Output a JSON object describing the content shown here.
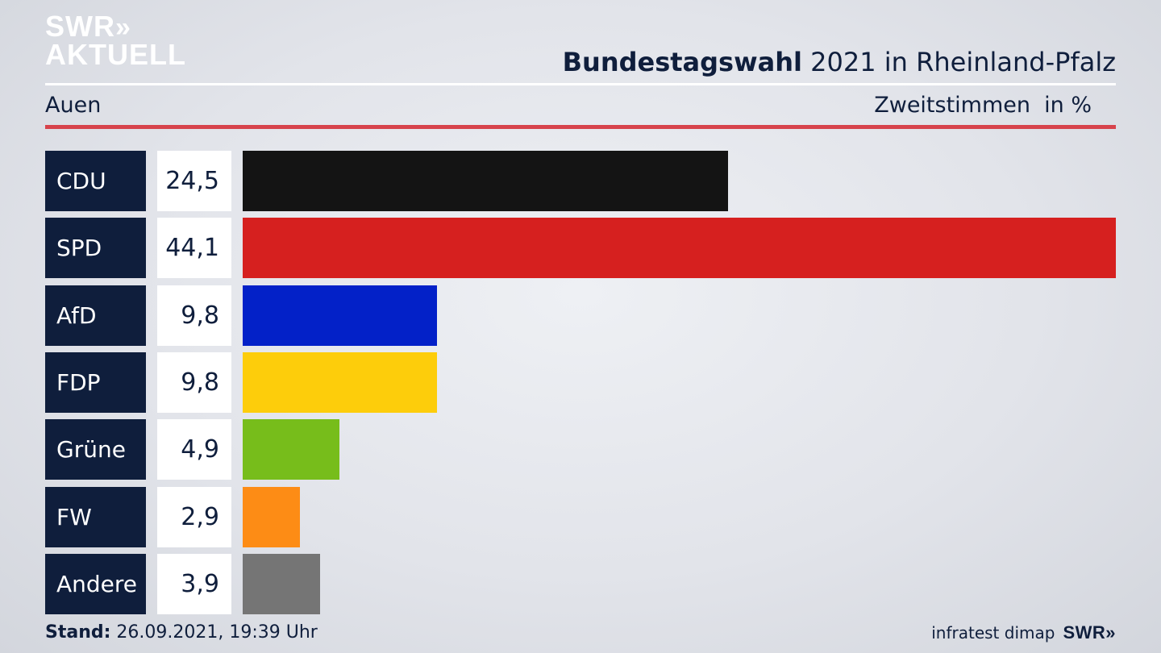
{
  "logo": {
    "line1": "SWR",
    "chevrons": "»",
    "line2": "AKTUELL"
  },
  "header": {
    "title_bold": "Bundestagswahl",
    "title_rest": " 2021 in Rheinland-Pfalz",
    "region": "Auen",
    "vote_type": "Zweitstimmen",
    "unit": "in %"
  },
  "colors": {
    "navy": "#0f1e3c",
    "accent_red": "#d7434c"
  },
  "chart_data": {
    "type": "bar",
    "orientation": "horizontal",
    "categories": [
      "CDU",
      "SPD",
      "AfD",
      "FDP",
      "Grüne",
      "FW",
      "Andere"
    ],
    "values": [
      24.5,
      44.1,
      9.8,
      9.8,
      4.9,
      2.9,
      3.9
    ],
    "value_labels": [
      "24,5",
      "44,1",
      "9,8",
      "9,8",
      "4,9",
      "2,9",
      "3,9"
    ],
    "colors": [
      "#141414",
      "#d6201f",
      "#0321c8",
      "#fdcd0b",
      "#77bd1b",
      "#fd8c15",
      "#757575"
    ],
    "xlim": [
      0,
      44.1
    ]
  },
  "footer": {
    "stand_label": "Stand:",
    "stand_value": " 26.09.2021, 19:39 Uhr",
    "source": "infratest dimap",
    "brand": "SWR»"
  }
}
